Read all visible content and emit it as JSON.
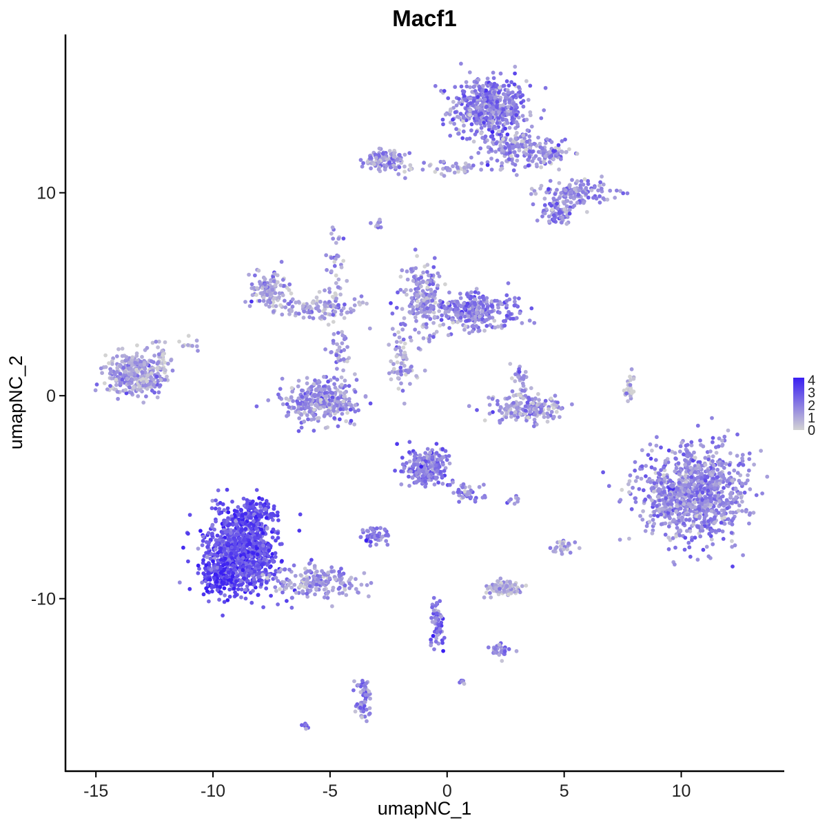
{
  "chart_data": {
    "type": "scatter",
    "title": "Macf1",
    "xlabel": "umapNC_1",
    "ylabel": "umapNC_2",
    "xlim": [
      -16.3,
      14.4
    ],
    "ylim": [
      -18.5,
      17.8
    ],
    "x_ticks": [
      -15,
      -10,
      -5,
      0,
      5,
      10
    ],
    "x_tick_labels": [
      "-15",
      "-10",
      "-5",
      "0",
      "5",
      "10"
    ],
    "y_ticks": [
      -10,
      0,
      10
    ],
    "y_tick_labels": [
      "-10",
      "0",
      "10"
    ],
    "grid": false,
    "color_scale": {
      "low": "#d3d3d3",
      "high": "#3a1ff2",
      "min": 0,
      "max": 4.2,
      "legend_ticks": [
        0,
        1,
        2,
        3,
        4
      ],
      "legend_labels": [
        "0",
        "1",
        "2",
        "3",
        "4"
      ],
      "legend_position": "right"
    },
    "clusters": [
      {
        "name": "a",
        "cx": 1.8,
        "cy": 14.2,
        "sx": 1.0,
        "sy": 0.9,
        "n": 520,
        "e": 1.9
      },
      {
        "name": "b",
        "cx": 2.8,
        "cy": 12.2,
        "sx": 0.9,
        "sy": 0.6,
        "n": 140,
        "e": 1.5
      },
      {
        "name": "c",
        "cx": -2.6,
        "cy": 11.6,
        "sx": 0.6,
        "sy": 0.35,
        "n": 120,
        "e": 1.6
      },
      {
        "name": "d",
        "cx": 0.0,
        "cy": 11.2,
        "sx": 1.1,
        "sy": 0.25,
        "n": 50,
        "e": 1.3
      },
      {
        "name": "e",
        "cx": 4.4,
        "cy": 12.0,
        "sx": 0.6,
        "sy": 0.4,
        "n": 90,
        "e": 1.5
      },
      {
        "name": "f",
        "cx": 5.4,
        "cy": 10.0,
        "sx": 1.0,
        "sy": 0.4,
        "n": 130,
        "e": 1.6
      },
      {
        "name": "g",
        "cx": 4.7,
        "cy": 9.0,
        "sx": 0.4,
        "sy": 0.35,
        "n": 70,
        "e": 1.8
      },
      {
        "name": "h",
        "cx": -13.3,
        "cy": 1.1,
        "sx": 0.8,
        "sy": 0.6,
        "n": 330,
        "e": 1.1
      },
      {
        "name": "i",
        "cx": -12.2,
        "cy": 1.9,
        "sx": 0.3,
        "sy": 0.6,
        "n": 30,
        "e": 0.9
      },
      {
        "name": "j",
        "cx": -7.6,
        "cy": 5.2,
        "sx": 0.5,
        "sy": 0.6,
        "n": 130,
        "e": 1.0
      },
      {
        "name": "k",
        "cx": -5.4,
        "cy": 4.3,
        "sx": 1.1,
        "sy": 0.4,
        "n": 110,
        "e": 1.1
      },
      {
        "name": "l",
        "cx": -4.7,
        "cy": 6.1,
        "sx": 0.3,
        "sy": 1.3,
        "n": 40,
        "e": 1.3
      },
      {
        "name": "m",
        "cx": -5.4,
        "cy": -0.3,
        "sx": 1.0,
        "sy": 0.6,
        "n": 320,
        "e": 1.5
      },
      {
        "name": "n",
        "cx": -4.6,
        "cy": 2.2,
        "sx": 0.3,
        "sy": 0.8,
        "n": 40,
        "e": 1.2
      },
      {
        "name": "o",
        "cx": -1.0,
        "cy": 4.8,
        "sx": 0.5,
        "sy": 1.0,
        "n": 190,
        "e": 1.4
      },
      {
        "name": "p",
        "cx": 1.3,
        "cy": 4.2,
        "sx": 1.1,
        "sy": 0.55,
        "n": 280,
        "e": 1.8
      },
      {
        "name": "q",
        "cx": -2.0,
        "cy": 2.0,
        "sx": 0.3,
        "sy": 1.2,
        "n": 50,
        "e": 0.8
      },
      {
        "name": "r",
        "cx": -1.7,
        "cy": 1.2,
        "sx": 0.5,
        "sy": 0.3,
        "n": 20,
        "e": 1.2
      },
      {
        "name": "s",
        "cx": 3.4,
        "cy": -0.6,
        "sx": 1.0,
        "sy": 0.45,
        "n": 170,
        "e": 1.4
      },
      {
        "name": "t",
        "cx": 3.1,
        "cy": 0.8,
        "sx": 0.2,
        "sy": 0.6,
        "n": 30,
        "e": 1.3
      },
      {
        "name": "u",
        "cx": 7.8,
        "cy": 0.3,
        "sx": 0.15,
        "sy": 0.5,
        "n": 25,
        "e": 0.6
      },
      {
        "name": "v",
        "cx": 10.5,
        "cy": -4.8,
        "sx": 1.4,
        "sy": 1.4,
        "n": 950,
        "e": 1.7
      },
      {
        "name": "w",
        "cx": -0.9,
        "cy": -3.5,
        "sx": 0.6,
        "sy": 0.6,
        "n": 220,
        "e": 2.0
      },
      {
        "name": "x",
        "cx": 0.9,
        "cy": -4.8,
        "sx": 0.5,
        "sy": 0.3,
        "n": 40,
        "e": 1.7
      },
      {
        "name": "y",
        "cx": -8.8,
        "cy": -7.7,
        "sx": 1.0,
        "sy": 1.2,
        "n": 900,
        "e": 3.0
      },
      {
        "name": "z",
        "cx": -9.7,
        "cy": -8.9,
        "sx": 0.5,
        "sy": 0.5,
        "n": 120,
        "e": 3.7
      },
      {
        "name": "aa",
        "cx": -8.3,
        "cy": -5.8,
        "sx": 0.6,
        "sy": 0.5,
        "n": 120,
        "e": 3.2
      },
      {
        "name": "ab",
        "cx": -5.6,
        "cy": -9.2,
        "sx": 1.1,
        "sy": 0.5,
        "n": 180,
        "e": 1.4
      },
      {
        "name": "ac",
        "cx": -3.1,
        "cy": -6.9,
        "sx": 0.35,
        "sy": 0.25,
        "n": 60,
        "e": 1.8
      },
      {
        "name": "ad",
        "cx": 2.4,
        "cy": -9.5,
        "sx": 0.5,
        "sy": 0.2,
        "n": 90,
        "e": 0.7
      },
      {
        "name": "ae",
        "cx": -0.4,
        "cy": -11.2,
        "sx": 0.2,
        "sy": 0.8,
        "n": 60,
        "e": 2.2
      },
      {
        "name": "af",
        "cx": 2.3,
        "cy": -12.6,
        "sx": 0.3,
        "sy": 0.2,
        "n": 30,
        "e": 1.8
      },
      {
        "name": "ag",
        "cx": -3.6,
        "cy": -14.9,
        "sx": 0.2,
        "sy": 0.6,
        "n": 60,
        "e": 1.8
      },
      {
        "name": "ah",
        "cx": 5.0,
        "cy": -7.4,
        "sx": 0.3,
        "sy": 0.25,
        "n": 25,
        "e": 1.0
      },
      {
        "name": "ai",
        "cx": -11.0,
        "cy": 2.5,
        "sx": 0.3,
        "sy": 0.3,
        "n": 10,
        "e": 0.6
      },
      {
        "name": "aj",
        "cx": -2.9,
        "cy": 8.5,
        "sx": 0.15,
        "sy": 0.2,
        "n": 10,
        "e": 1.2
      },
      {
        "name": "ak",
        "cx": -6.0,
        "cy": -16.3,
        "sx": 0.15,
        "sy": 0.12,
        "n": 8,
        "e": 2.2
      },
      {
        "name": "al",
        "cx": 2.8,
        "cy": -5.1,
        "sx": 0.2,
        "sy": 0.12,
        "n": 8,
        "e": 2.0
      },
      {
        "name": "am",
        "cx": 0.6,
        "cy": -14.1,
        "sx": 0.1,
        "sy": 0.1,
        "n": 6,
        "e": 2.0
      }
    ]
  }
}
